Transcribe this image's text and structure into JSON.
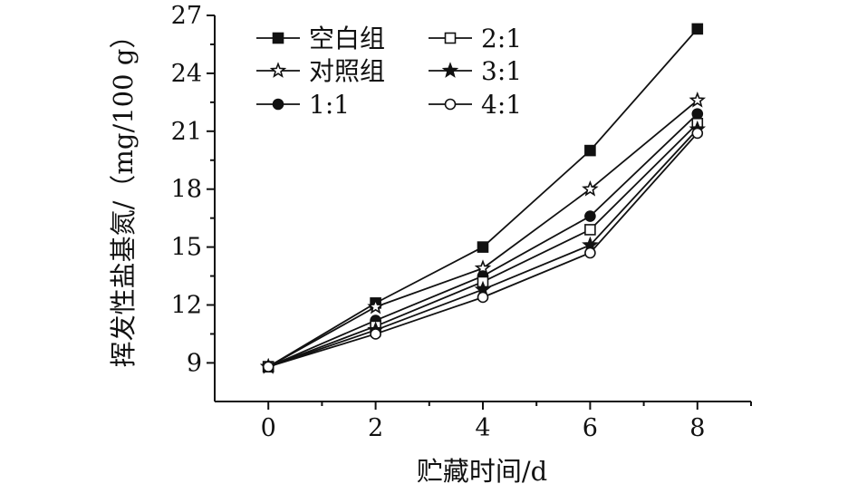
{
  "chart_data": {
    "type": "line",
    "xlabel": "贮藏时间/d",
    "ylabel": "挥发性盐基氮/（mg/100 g）",
    "x": [
      0,
      2,
      4,
      6,
      8
    ],
    "xlim": [
      -1,
      9
    ],
    "ylim": [
      7,
      27
    ],
    "xticks": [
      "0",
      "2",
      "4",
      "6",
      "8"
    ],
    "yticks": [
      "9",
      "12",
      "15",
      "18",
      "21",
      "24",
      "27"
    ],
    "legend_position": "top-left",
    "series": [
      {
        "name": "空白组",
        "marker": "filled-square",
        "values": [
          8.8,
          12.1,
          15.0,
          20.0,
          26.3
        ]
      },
      {
        "name": "对照组",
        "marker": "open-star",
        "values": [
          8.8,
          11.9,
          13.9,
          18.0,
          22.6
        ]
      },
      {
        "name": "1:1",
        "marker": "filled-circle",
        "values": [
          8.8,
          11.2,
          13.5,
          16.6,
          21.9
        ]
      },
      {
        "name": "2:1",
        "marker": "open-square",
        "values": [
          8.8,
          10.9,
          13.2,
          15.9,
          21.4
        ]
      },
      {
        "name": "3:1",
        "marker": "filled-star",
        "values": [
          8.8,
          10.7,
          12.8,
          15.1,
          21.1
        ]
      },
      {
        "name": "4:1",
        "marker": "open-circle",
        "values": [
          8.8,
          10.5,
          12.4,
          14.7,
          20.9
        ]
      }
    ]
  }
}
